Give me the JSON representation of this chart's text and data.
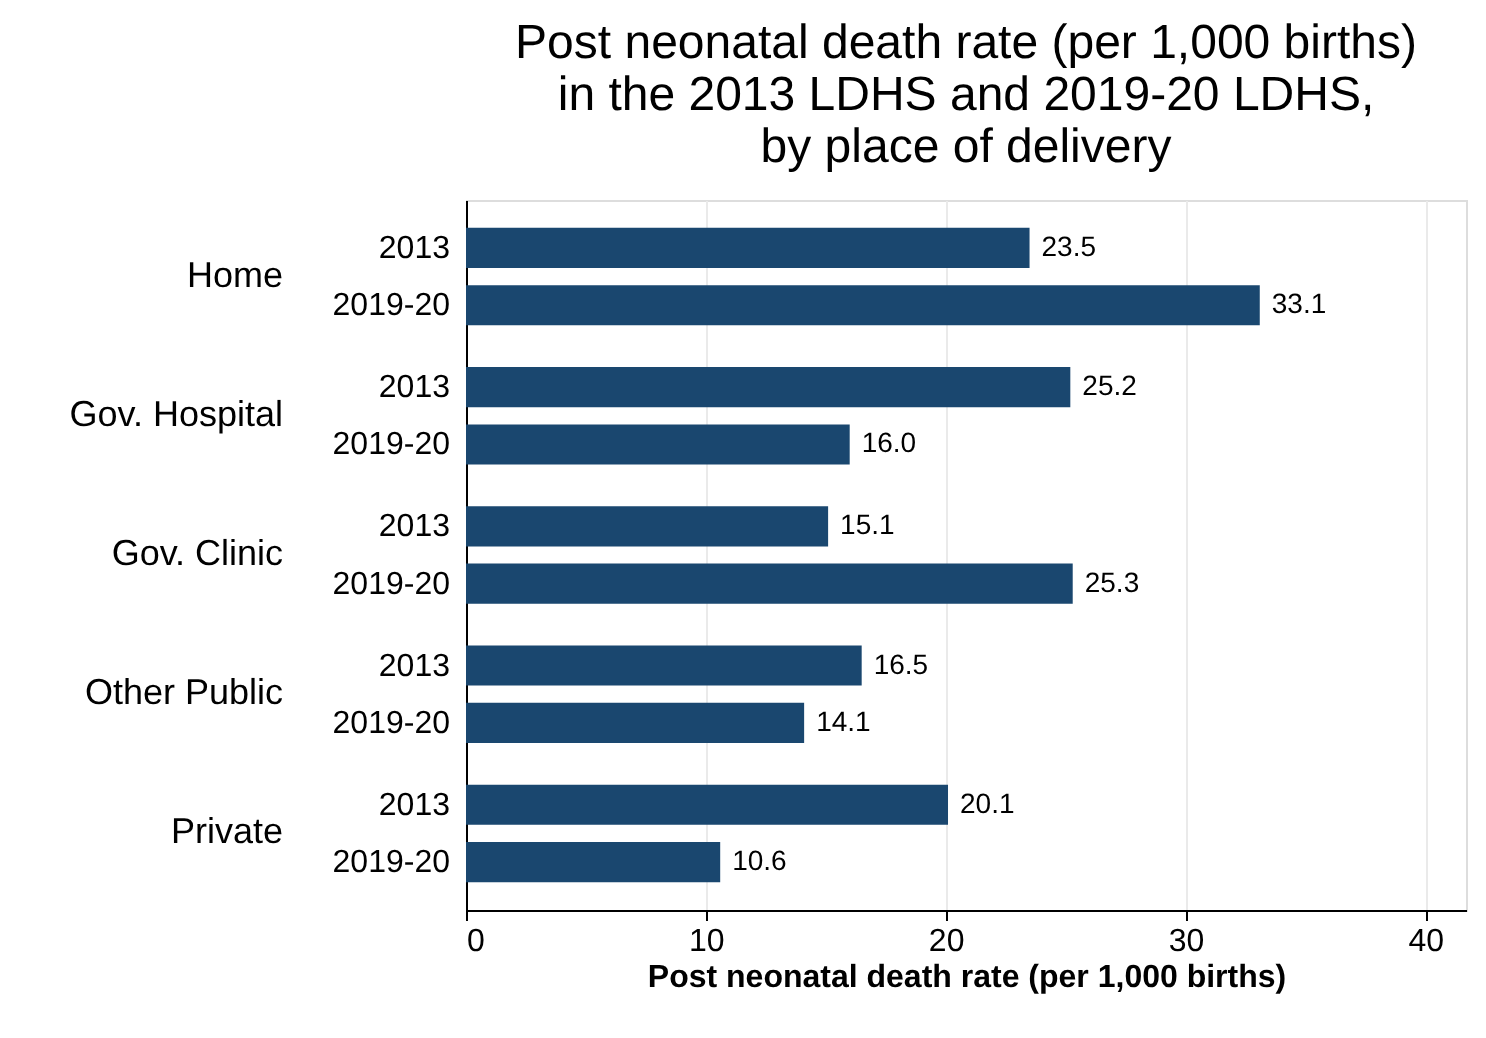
{
  "chart_data": {
    "type": "bar",
    "orientation": "horizontal",
    "title": "Post neonatal death rate (per 1,000 births)\nin the 2013 LDHS and 2019-20 LDHS,\nby place of delivery",
    "xlabel": "Post neonatal death rate (per 1,000 births)",
    "categories": [
      "Home",
      "Gov. Hospital",
      "Gov. Clinic",
      "Other Public",
      "Private"
    ],
    "series": [
      {
        "name": "2013",
        "color": "#1a476f",
        "values": [
          23.5,
          25.2,
          15.1,
          16.5,
          20.1
        ],
        "value_labels": [
          "23.5",
          "25.2",
          "15.1",
          "16.5",
          "20.1"
        ]
      },
      {
        "name": "2019-20",
        "color": "#1a476f",
        "values": [
          33.1,
          16.0,
          25.3,
          14.1,
          10.6
        ],
        "value_labels": [
          "33.1",
          "16.0",
          "25.3",
          "14.1",
          "10.6"
        ]
      }
    ],
    "xlim": [
      0,
      41.7
    ],
    "xticks": [
      0,
      10,
      20,
      30,
      40
    ],
    "grid": "x"
  }
}
